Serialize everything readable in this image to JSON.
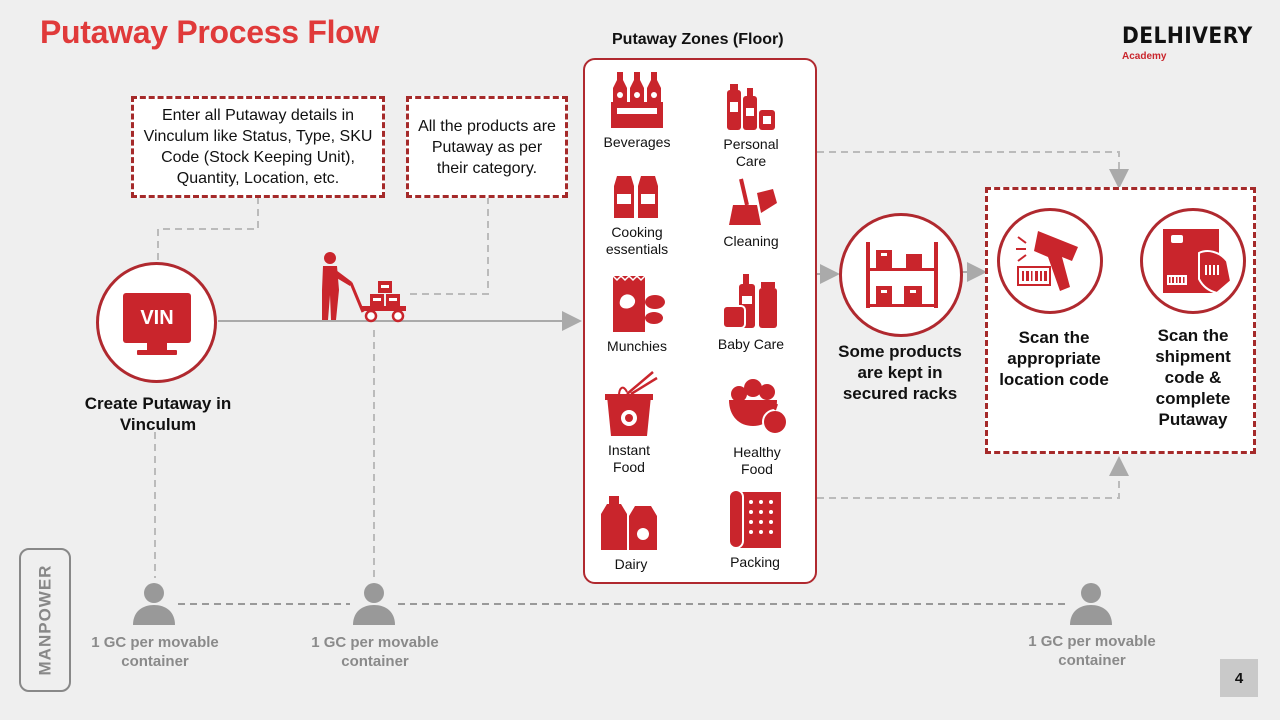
{
  "title": "Putaway Process Flow",
  "brand": {
    "name": "DELHIVERY",
    "sub": "Academy"
  },
  "note_vinculum": "Enter all Putaway details in Vinculum like Status, Type, SKU Code (Stock Keeping Unit), Quantity, Location, etc.",
  "note_category": "All the products are Putaway as per their category.",
  "vin": {
    "badge": "VIN",
    "label": "Create Putaway in Vinculum"
  },
  "zones": {
    "title": "Putaway Zones (Floor)",
    "items": [
      {
        "label": "Beverages",
        "icon": "bottles-icon"
      },
      {
        "label": "Personal Care",
        "icon": "toiletries-icon"
      },
      {
        "label": "Cooking essentials",
        "icon": "spice-jars-icon"
      },
      {
        "label": "Cleaning",
        "icon": "broom-icon"
      },
      {
        "label": "Munchies",
        "icon": "chips-icon"
      },
      {
        "label": "Baby Care",
        "icon": "baby-bottles-icon"
      },
      {
        "label": "Instant Food",
        "icon": "noodles-icon"
      },
      {
        "label": "Healthy Food",
        "icon": "fruit-bowl-icon"
      },
      {
        "label": "Dairy",
        "icon": "milk-icon"
      },
      {
        "label": "Packing",
        "icon": "bubble-wrap-icon"
      }
    ]
  },
  "racks_label": "Some products are kept in secured racks",
  "scan_location": "Scan the appropriate location code",
  "scan_shipment": "Scan the shipment code & complete Putaway",
  "manpower": {
    "label": "MANPOWER",
    "gc": [
      "1 GC per movable container",
      "1 GC per movable container",
      "1 GC per movable container"
    ]
  },
  "page_number": "4",
  "colors": {
    "accent": "#e03a3a",
    "dark_red": "#b0292f",
    "gray": "#8a8a8a"
  }
}
